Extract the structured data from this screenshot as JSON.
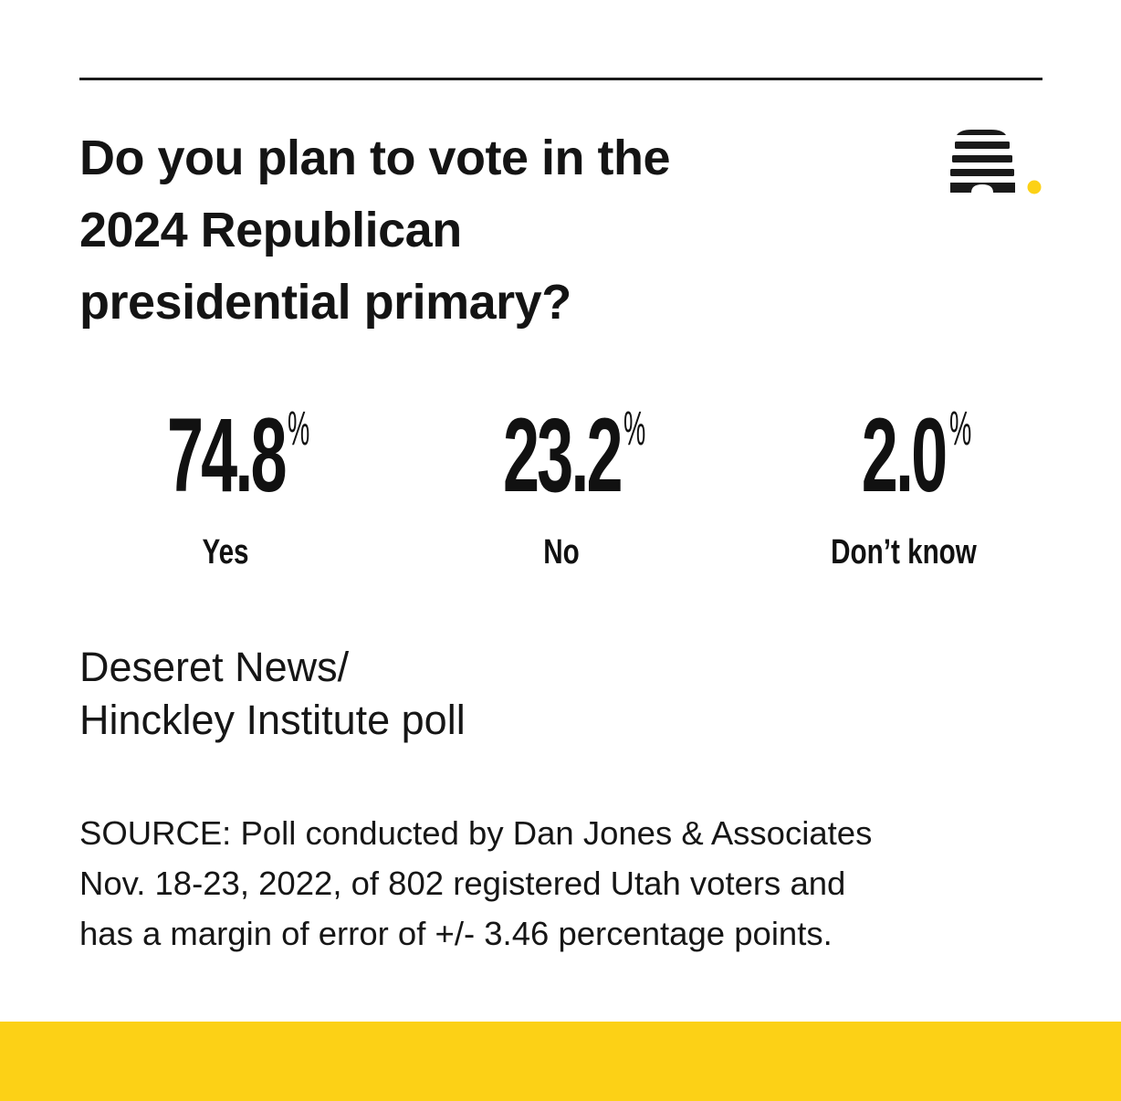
{
  "question": [
    "Do you plan to vote in the",
    "2024 Republican",
    "presidential primary?"
  ],
  "poll_name": [
    "Deseret News/",
    "Hinckley Institute poll"
  ],
  "source": [
    "SOURCE: Poll conducted by Dan Jones & Associates",
    "Nov. 18-23, 2022, of 802 registered Utah voters and",
    "has a margin of error of +/- 3.46 percentage points."
  ],
  "colors": {
    "text": "#111111",
    "accent_yellow": "#fcd116",
    "rule": "#1a1a1a"
  },
  "logo": {
    "icon": "beehive-icon"
  },
  "chart_data": {
    "type": "table",
    "unit": "%",
    "categories": [
      "Yes",
      "No",
      "Don’t know"
    ],
    "values": [
      74.8,
      23.2,
      2.0
    ],
    "display_values": [
      "74.8",
      "23.2",
      "2.0"
    ]
  }
}
